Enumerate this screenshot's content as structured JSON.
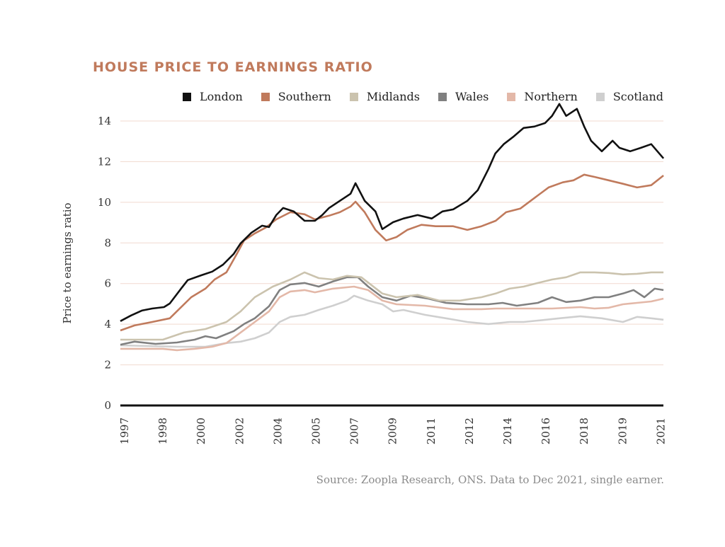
{
  "chart_data": {
    "type": "line",
    "title": "HOUSE PRICE TO EARNINGS RATIO",
    "xlabel": "",
    "ylabel": "Price to earnings ratio",
    "ylim": [
      0,
      14
    ],
    "yticks": [
      0,
      2,
      4,
      6,
      8,
      10,
      12,
      14
    ],
    "xtick_labels": [
      "1997",
      "1998",
      "2000",
      "2002",
      "2004",
      "2005",
      "2007",
      "2009",
      "2011",
      "2012",
      "2014",
      "2016",
      "2018",
      "2019",
      "2021"
    ],
    "x_note": "x values are positions on the evenly spaced tick-label scale (0 = 1997 label, 14 = 2021 label)",
    "xlim": [
      -0.13,
      14.05
    ],
    "grid": true,
    "legend_position": "top-right",
    "source": "Source: Zoopla Research, ONS. Data to Dec 2021, single earner.",
    "series": [
      {
        "name": "London",
        "color": "#111111",
        "points": [
          [
            -0.13,
            4.15
          ],
          [
            0.15,
            4.43
          ],
          [
            0.43,
            4.67
          ],
          [
            0.7,
            4.77
          ],
          [
            1.01,
            4.84
          ],
          [
            1.16,
            5.02
          ],
          [
            1.44,
            5.71
          ],
          [
            1.63,
            6.17
          ],
          [
            1.99,
            6.41
          ],
          [
            2.27,
            6.59
          ],
          [
            2.55,
            6.93
          ],
          [
            2.83,
            7.46
          ],
          [
            3.01,
            7.98
          ],
          [
            3.29,
            8.5
          ],
          [
            3.57,
            8.85
          ],
          [
            3.75,
            8.78
          ],
          [
            3.94,
            9.37
          ],
          [
            4.12,
            9.72
          ],
          [
            4.4,
            9.55
          ],
          [
            4.68,
            9.09
          ],
          [
            4.95,
            9.09
          ],
          [
            5.14,
            9.37
          ],
          [
            5.32,
            9.72
          ],
          [
            5.6,
            10.07
          ],
          [
            5.88,
            10.42
          ],
          [
            6.01,
            10.94
          ],
          [
            6.25,
            10.07
          ],
          [
            6.53,
            9.55
          ],
          [
            6.71,
            8.68
          ],
          [
            6.99,
            9.02
          ],
          [
            7.26,
            9.2
          ],
          [
            7.63,
            9.37
          ],
          [
            8.0,
            9.2
          ],
          [
            8.28,
            9.55
          ],
          [
            8.56,
            9.65
          ],
          [
            8.93,
            10.07
          ],
          [
            9.2,
            10.59
          ],
          [
            9.48,
            11.64
          ],
          [
            9.66,
            12.4
          ],
          [
            9.88,
            12.86
          ],
          [
            10.12,
            13.21
          ],
          [
            10.4,
            13.66
          ],
          [
            10.68,
            13.73
          ],
          [
            10.96,
            13.9
          ],
          [
            11.14,
            14.25
          ],
          [
            11.33,
            14.84
          ],
          [
            11.51,
            14.25
          ],
          [
            11.79,
            14.6
          ],
          [
            11.98,
            13.73
          ],
          [
            12.16,
            13.03
          ],
          [
            12.44,
            12.51
          ],
          [
            12.72,
            13.03
          ],
          [
            12.9,
            12.68
          ],
          [
            13.18,
            12.51
          ],
          [
            13.46,
            12.68
          ],
          [
            13.73,
            12.86
          ],
          [
            14.05,
            12.16
          ]
        ]
      },
      {
        "name": "Southern",
        "color": "#c07a5c",
        "points": [
          [
            -0.13,
            3.69
          ],
          [
            0.24,
            3.94
          ],
          [
            0.7,
            4.11
          ],
          [
            1.16,
            4.29
          ],
          [
            1.44,
            4.81
          ],
          [
            1.72,
            5.33
          ],
          [
            2.09,
            5.75
          ],
          [
            2.33,
            6.2
          ],
          [
            2.64,
            6.55
          ],
          [
            2.92,
            7.49
          ],
          [
            3.1,
            8.12
          ],
          [
            3.38,
            8.47
          ],
          [
            3.66,
            8.75
          ],
          [
            3.94,
            9.16
          ],
          [
            4.31,
            9.51
          ],
          [
            4.68,
            9.41
          ],
          [
            4.95,
            9.16
          ],
          [
            5.32,
            9.34
          ],
          [
            5.6,
            9.51
          ],
          [
            5.88,
            9.79
          ],
          [
            6.01,
            10.03
          ],
          [
            6.25,
            9.51
          ],
          [
            6.53,
            8.64
          ],
          [
            6.81,
            8.12
          ],
          [
            7.08,
            8.29
          ],
          [
            7.36,
            8.64
          ],
          [
            7.73,
            8.89
          ],
          [
            8.1,
            8.82
          ],
          [
            8.56,
            8.82
          ],
          [
            8.93,
            8.64
          ],
          [
            9.3,
            8.82
          ],
          [
            9.67,
            9.09
          ],
          [
            9.94,
            9.51
          ],
          [
            10.31,
            9.69
          ],
          [
            10.68,
            10.21
          ],
          [
            11.05,
            10.73
          ],
          [
            11.42,
            10.98
          ],
          [
            11.7,
            11.08
          ],
          [
            11.98,
            11.36
          ],
          [
            12.25,
            11.25
          ],
          [
            12.62,
            11.08
          ],
          [
            12.99,
            10.91
          ],
          [
            13.36,
            10.73
          ],
          [
            13.73,
            10.84
          ],
          [
            14.05,
            11.32
          ]
        ]
      },
      {
        "name": "Midlands",
        "color": "#cbc3ae",
        "points": [
          [
            -0.13,
            3.24
          ],
          [
            0.98,
            3.24
          ],
          [
            1.53,
            3.59
          ],
          [
            2.09,
            3.76
          ],
          [
            2.64,
            4.11
          ],
          [
            3.01,
            4.63
          ],
          [
            3.38,
            5.33
          ],
          [
            3.85,
            5.85
          ],
          [
            4.31,
            6.2
          ],
          [
            4.68,
            6.55
          ],
          [
            5.05,
            6.27
          ],
          [
            5.42,
            6.2
          ],
          [
            5.79,
            6.38
          ],
          [
            6.16,
            6.31
          ],
          [
            6.71,
            5.51
          ],
          [
            7.08,
            5.33
          ],
          [
            7.63,
            5.44
          ],
          [
            8.19,
            5.16
          ],
          [
            8.74,
            5.16
          ],
          [
            9.3,
            5.33
          ],
          [
            9.67,
            5.51
          ],
          [
            10.03,
            5.75
          ],
          [
            10.4,
            5.85
          ],
          [
            10.77,
            6.03
          ],
          [
            11.14,
            6.2
          ],
          [
            11.51,
            6.31
          ],
          [
            11.88,
            6.55
          ],
          [
            12.25,
            6.55
          ],
          [
            12.62,
            6.52
          ],
          [
            12.99,
            6.45
          ],
          [
            13.36,
            6.48
          ],
          [
            13.73,
            6.55
          ],
          [
            14.05,
            6.55
          ]
        ]
      },
      {
        "name": "Wales",
        "color": "#808080",
        "points": [
          [
            -0.13,
            2.99
          ],
          [
            0.24,
            3.14
          ],
          [
            0.79,
            3.03
          ],
          [
            1.35,
            3.1
          ],
          [
            1.81,
            3.24
          ],
          [
            2.09,
            3.41
          ],
          [
            2.37,
            3.31
          ],
          [
            2.83,
            3.66
          ],
          [
            3.1,
            4.01
          ],
          [
            3.38,
            4.29
          ],
          [
            3.75,
            4.88
          ],
          [
            4.03,
            5.68
          ],
          [
            4.31,
            5.96
          ],
          [
            4.68,
            6.03
          ],
          [
            5.05,
            5.85
          ],
          [
            5.42,
            6.1
          ],
          [
            5.79,
            6.31
          ],
          [
            6.07,
            6.31
          ],
          [
            6.34,
            5.85
          ],
          [
            6.71,
            5.33
          ],
          [
            7.08,
            5.16
          ],
          [
            7.45,
            5.4
          ],
          [
            7.91,
            5.26
          ],
          [
            8.37,
            5.05
          ],
          [
            8.93,
            4.98
          ],
          [
            9.48,
            4.98
          ],
          [
            9.85,
            5.05
          ],
          [
            10.22,
            4.91
          ],
          [
            10.77,
            5.05
          ],
          [
            11.14,
            5.33
          ],
          [
            11.51,
            5.09
          ],
          [
            11.88,
            5.16
          ],
          [
            12.25,
            5.33
          ],
          [
            12.62,
            5.33
          ],
          [
            12.99,
            5.51
          ],
          [
            13.27,
            5.68
          ],
          [
            13.55,
            5.33
          ],
          [
            13.82,
            5.75
          ],
          [
            14.05,
            5.68
          ]
        ]
      },
      {
        "name": "Northern",
        "color": "#e3b8a8",
        "points": [
          [
            -0.13,
            2.79
          ],
          [
            0.98,
            2.79
          ],
          [
            1.35,
            2.72
          ],
          [
            1.81,
            2.79
          ],
          [
            2.27,
            2.89
          ],
          [
            2.64,
            3.07
          ],
          [
            3.01,
            3.59
          ],
          [
            3.38,
            4.11
          ],
          [
            3.75,
            4.63
          ],
          [
            4.03,
            5.33
          ],
          [
            4.31,
            5.61
          ],
          [
            4.68,
            5.68
          ],
          [
            4.95,
            5.57
          ],
          [
            5.42,
            5.75
          ],
          [
            5.97,
            5.85
          ],
          [
            6.34,
            5.68
          ],
          [
            6.71,
            5.16
          ],
          [
            7.08,
            4.98
          ],
          [
            7.82,
            4.91
          ],
          [
            8.56,
            4.74
          ],
          [
            9.3,
            4.74
          ],
          [
            9.67,
            4.77
          ],
          [
            10.4,
            4.77
          ],
          [
            11.14,
            4.77
          ],
          [
            11.88,
            4.84
          ],
          [
            12.25,
            4.77
          ],
          [
            12.62,
            4.81
          ],
          [
            12.99,
            4.98
          ],
          [
            13.36,
            5.05
          ],
          [
            13.73,
            5.12
          ],
          [
            14.05,
            5.26
          ]
        ]
      },
      {
        "name": "Scotland",
        "color": "#cfcfcf",
        "points": [
          [
            -0.13,
            2.96
          ],
          [
            1.35,
            2.89
          ],
          [
            2.09,
            2.89
          ],
          [
            2.64,
            3.07
          ],
          [
            3.01,
            3.14
          ],
          [
            3.38,
            3.31
          ],
          [
            3.75,
            3.59
          ],
          [
            4.03,
            4.11
          ],
          [
            4.31,
            4.36
          ],
          [
            4.68,
            4.46
          ],
          [
            5.05,
            4.7
          ],
          [
            5.42,
            4.91
          ],
          [
            5.79,
            5.16
          ],
          [
            5.97,
            5.4
          ],
          [
            6.34,
            5.16
          ],
          [
            6.71,
            4.98
          ],
          [
            6.99,
            4.63
          ],
          [
            7.26,
            4.7
          ],
          [
            7.82,
            4.46
          ],
          [
            8.37,
            4.29
          ],
          [
            8.93,
            4.11
          ],
          [
            9.48,
            4.01
          ],
          [
            10.03,
            4.11
          ],
          [
            10.4,
            4.11
          ],
          [
            10.77,
            4.18
          ],
          [
            11.33,
            4.29
          ],
          [
            11.88,
            4.39
          ],
          [
            12.44,
            4.29
          ],
          [
            12.99,
            4.11
          ],
          [
            13.36,
            4.36
          ],
          [
            13.73,
            4.29
          ],
          [
            14.05,
            4.22
          ]
        ]
      }
    ]
  }
}
